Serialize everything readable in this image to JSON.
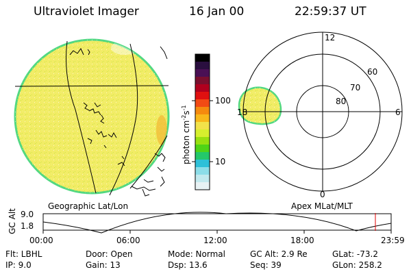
{
  "header": {
    "instrument": "Ultraviolet Imager",
    "date": "16 Jan 00",
    "time": "22:59:37 UT"
  },
  "colorbar": {
    "unit_prefix": "photon cm",
    "unit_exp1": "-2",
    "unit_mid": "s",
    "unit_exp2": "-1",
    "tick_labels": [
      "100",
      "10"
    ],
    "colors": [
      "#000000",
      "#2a0f3f",
      "#4a1054",
      "#7a0f2e",
      "#b0001e",
      "#e01010",
      "#f24a14",
      "#f58a0e",
      "#f8b81a",
      "#f2e24a",
      "#d6ef2e",
      "#98e010",
      "#4fd416",
      "#24c86a",
      "#2ec0d8",
      "#8cdde8",
      "#c2e9ee",
      "#e8f2f4"
    ]
  },
  "left_panel": {
    "caption": "Geographic Lat/Lon",
    "disk_fill": "#f2ec66",
    "disk_edge": "#52d882"
  },
  "right_panel": {
    "caption": "Apex MLat/MLT",
    "mlt_labels": [
      "12",
      "18",
      "6",
      "0"
    ],
    "mlat_labels": [
      "60",
      "70",
      "80"
    ]
  },
  "altitude_plot": {
    "ylabel": "GC Alt",
    "y_ticks": [
      "9.0",
      "1.8"
    ],
    "x_ticks": [
      "00:00",
      "06:00",
      "12:00",
      "18:00",
      "23:59"
    ],
    "marker_color": "#e00000"
  },
  "info": {
    "filter": "Flt: LBHL",
    "ip": "IP:  9.0",
    "door": "Door: Open",
    "gain": "Gain: 13",
    "mode": "Mode:  Normal",
    "dsp": "Dsp:   13.6",
    "gc_alt": "GC Alt: 2.9 Re",
    "seq": "Seq: 39",
    "glat": "GLat:  -73.2",
    "glon": "GLon:  258.2"
  }
}
